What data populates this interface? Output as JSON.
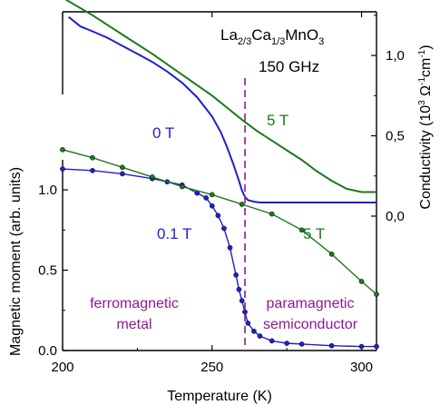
{
  "chart_data": [
    {
      "type": "line",
      "panel": "top",
      "title": "La2/3Ca1/3MnO3",
      "title_parts": {
        "base1": "La",
        "sub1": "2/3",
        "base2": "Ca",
        "sub2": "1/3",
        "base3": "MnO",
        "sub3": "3"
      },
      "subtitle": "150 GHz",
      "xlim": [
        200,
        305
      ],
      "ylim": [
        0.0,
        1.3
      ],
      "y_axis_side": "right",
      "ylabel": "Conductivity (10^3 Ω^-1 cm^-1)",
      "ylabel_parts": {
        "a": "Conductivity (10",
        "sup1": "3",
        "b": " Ω",
        "sup2": "-1",
        "c": "cm",
        "sup3": "-1",
        "d": ")"
      },
      "yticks": [
        {
          "value": 0.0,
          "label": "0,0"
        },
        {
          "value": 0.5,
          "label": "0,5"
        },
        {
          "value": 1.0,
          "label": "1,0"
        }
      ],
      "series": [
        {
          "name": "0 T",
          "color": "#1f1fd0",
          "x": [
            202,
            206,
            210,
            215,
            220,
            225,
            230,
            235,
            240,
            245,
            250,
            253,
            255,
            257,
            259,
            260,
            261,
            262,
            264,
            266,
            270,
            280,
            290,
            300,
            305
          ],
          "y": [
            1.24,
            1.18,
            1.15,
            1.11,
            1.06,
            1.01,
            0.96,
            0.9,
            0.83,
            0.74,
            0.62,
            0.52,
            0.43,
            0.33,
            0.22,
            0.16,
            0.12,
            0.1,
            0.09,
            0.085,
            0.085,
            0.085,
            0.085,
            0.085,
            0.085
          ]
        },
        {
          "name": "5 T",
          "color": "#1a7a1a",
          "x": [
            200,
            210,
            220,
            230,
            240,
            250,
            260,
            265,
            270,
            275,
            280,
            285,
            290,
            295,
            300,
            303,
            305
          ],
          "y": [
            1.36,
            1.25,
            1.13,
            1.01,
            0.88,
            0.75,
            0.6,
            0.53,
            0.47,
            0.41,
            0.35,
            0.28,
            0.22,
            0.17,
            0.15,
            0.15,
            0.15
          ]
        }
      ],
      "annotations": [
        {
          "text": "0 T",
          "color": "#1f1fd0"
        },
        {
          "text": "5 T",
          "color": "#1a7a1a"
        }
      ]
    },
    {
      "type": "line",
      "panel": "bottom",
      "xlim": [
        200,
        305
      ],
      "ylim": [
        0.0,
        1.3
      ],
      "xlabel": "Temperature (K)",
      "ylabel": "Magnetic moment (arb. units)",
      "xticks": [
        {
          "value": 200,
          "label": "200"
        },
        {
          "value": 250,
          "label": "250"
        },
        {
          "value": 300,
          "label": "300"
        }
      ],
      "yticks": [
        {
          "value": 0.0,
          "label": "0.0"
        },
        {
          "value": 0.5,
          "label": "0.5"
        },
        {
          "value": 1.0,
          "label": "1.0"
        }
      ],
      "series": [
        {
          "name": "0.1 T",
          "color": "#1f1fd0",
          "x": [
            200,
            210,
            220,
            230,
            235,
            240,
            245,
            248,
            250,
            252,
            254,
            256,
            258,
            259,
            260,
            261,
            262,
            264,
            266,
            270,
            275,
            280,
            290,
            300,
            305
          ],
          "y": [
            1.13,
            1.12,
            1.1,
            1.07,
            1.05,
            1.03,
            0.98,
            0.95,
            0.9,
            0.84,
            0.76,
            0.64,
            0.47,
            0.38,
            0.31,
            0.24,
            0.17,
            0.12,
            0.09,
            0.06,
            0.045,
            0.04,
            0.03,
            0.025,
            0.025
          ]
        },
        {
          "name": "5 T",
          "color": "#1a7a1a",
          "x": [
            200,
            210,
            220,
            230,
            240,
            250,
            260,
            270,
            280,
            290,
            300,
            305
          ],
          "y": [
            1.25,
            1.2,
            1.14,
            1.08,
            1.02,
            0.97,
            0.91,
            0.85,
            0.75,
            0.6,
            0.43,
            0.35
          ]
        }
      ],
      "annotations": [
        {
          "text": "0.1 T",
          "color": "#1f1fd0"
        },
        {
          "text": "5 T",
          "color": "#1a7a1a"
        },
        {
          "text": "ferromagnetic",
          "color": "#8a1c8a"
        },
        {
          "text": "metal",
          "color": "#8a1c8a"
        },
        {
          "text": "paramagnetic",
          "color": "#8a1c8a"
        },
        {
          "text": "semiconductor",
          "color": "#8a1c8a"
        }
      ]
    }
  ],
  "transition_line": {
    "x": 261,
    "color": "#8a1c8a"
  }
}
